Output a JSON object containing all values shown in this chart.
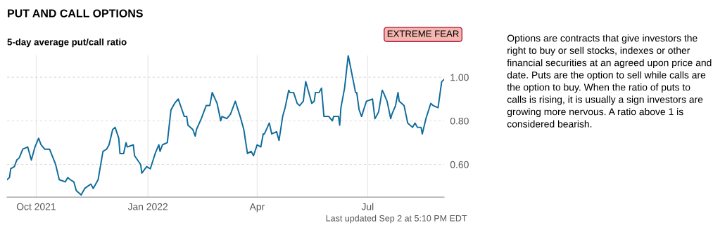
{
  "chart_data": {
    "type": "line",
    "title": "PUT AND CALL OPTIONS",
    "subtitle": "5-day average put/call ratio",
    "annotations": [
      "EXTREME FEAR",
      "Last updated Sep 2 at 5:10 PM EDT",
      "Options are contracts that give investors the right to buy or sell stocks, indexes or other financial securities at an agreed upon price and date. Puts are the option to sell while calls are the option to buy. When the ratio of puts to calls is rising, it is usually a sign investors are growing more nervous. A ratio above 1 is considered bearish."
    ],
    "x": [
      "2021-09-07",
      "2021-09-09",
      "2021-09-10",
      "2021-09-13",
      "2021-09-15",
      "2021-09-17",
      "2021-09-20",
      "2021-09-24",
      "2021-09-27",
      "2021-09-30",
      "2021-10-03",
      "2021-10-05",
      "2021-10-08",
      "2021-10-12",
      "2021-10-17",
      "2021-10-20",
      "2021-10-25",
      "2021-10-27",
      "2021-10-29",
      "2021-11-01",
      "2021-11-03",
      "2021-11-07",
      "2021-11-10",
      "2021-11-15",
      "2021-11-17",
      "2021-11-19",
      "2021-11-21",
      "2021-11-25",
      "2021-11-28",
      "2021-11-30",
      "2021-12-03",
      "2021-12-05",
      "2021-12-08",
      "2021-12-09",
      "2021-12-12",
      "2021-12-14",
      "2021-12-15",
      "2021-12-20",
      "2021-12-21",
      "2021-12-26",
      "2021-12-27",
      "2021-12-31",
      "2022-01-03",
      "2022-01-07",
      "2022-01-10",
      "2022-01-11",
      "2022-01-13",
      "2022-01-17",
      "2022-01-20",
      "2022-01-23",
      "2022-01-26",
      "2022-01-31",
      "2022-02-02",
      "2022-02-03",
      "2022-02-07",
      "2022-02-09",
      "2022-02-10",
      "2022-02-14",
      "2022-02-18",
      "2022-02-21",
      "2022-02-23",
      "2022-02-27",
      "2022-03-02",
      "2022-03-03",
      "2022-03-07",
      "2022-03-10",
      "2022-03-14",
      "2022-03-18",
      "2022-03-21",
      "2022-03-24",
      "2022-03-27",
      "2022-03-29",
      "2022-04-01",
      "2022-04-04",
      "2022-04-06",
      "2022-04-07",
      "2022-04-11",
      "2022-04-13",
      "2022-04-17",
      "2022-04-19",
      "2022-04-22",
      "2022-04-24",
      "2022-04-27",
      "2022-04-28",
      "2022-05-01",
      "2022-05-04",
      "2022-05-06",
      "2022-05-09",
      "2022-05-11",
      "2022-05-13",
      "2022-05-16",
      "2022-05-18",
      "2022-05-19",
      "2022-05-22",
      "2022-05-24",
      "2022-05-26",
      "2022-05-30",
      "2022-06-02",
      "2022-06-03",
      "2022-06-07",
      "2022-06-08",
      "2022-06-09",
      "2022-06-12",
      "2022-06-15",
      "2022-06-20",
      "2022-06-21",
      "2022-06-22",
      "2022-06-24",
      "2022-06-26",
      "2022-06-30",
      "2022-07-05",
      "2022-07-07",
      "2022-07-10",
      "2022-07-13",
      "2022-07-14",
      "2022-07-17",
      "2022-07-20",
      "2022-07-21",
      "2022-07-24",
      "2022-07-26",
      "2022-07-27",
      "2022-07-31",
      "2022-08-03",
      "2022-08-07",
      "2022-08-09",
      "2022-08-11",
      "2022-08-14",
      "2022-08-15",
      "2022-08-18",
      "2022-08-22",
      "2022-08-24",
      "2022-08-28",
      "2022-08-31",
      "2022-09-02"
    ],
    "series": [
      {
        "color": "#0f6b9b",
        "values": [
          0.53,
          0.54,
          0.58,
          0.59,
          0.62,
          0.63,
          0.67,
          0.68,
          0.62,
          0.68,
          0.72,
          0.69,
          0.67,
          0.67,
          0.6,
          0.53,
          0.52,
          0.54,
          0.53,
          0.52,
          0.48,
          0.46,
          0.49,
          0.51,
          0.49,
          0.51,
          0.53,
          0.66,
          0.67,
          0.69,
          0.76,
          0.77,
          0.72,
          0.65,
          0.65,
          0.7,
          0.68,
          0.69,
          0.64,
          0.6,
          0.56,
          0.59,
          0.58,
          0.65,
          0.69,
          0.66,
          0.69,
          0.7,
          0.85,
          0.88,
          0.9,
          0.82,
          0.82,
          0.78,
          0.76,
          0.73,
          0.76,
          0.81,
          0.87,
          0.87,
          0.93,
          0.88,
          0.8,
          0.82,
          0.81,
          0.83,
          0.89,
          0.82,
          0.76,
          0.65,
          0.66,
          0.64,
          0.69,
          0.68,
          0.74,
          0.74,
          0.79,
          0.74,
          0.75,
          0.71,
          0.82,
          0.86,
          0.94,
          0.93,
          0.93,
          0.88,
          0.87,
          0.89,
          0.98,
          0.94,
          0.88,
          0.89,
          0.93,
          0.93,
          0.95,
          0.82,
          0.82,
          0.8,
          0.82,
          0.82,
          0.78,
          0.86,
          0.95,
          1.1,
          0.96,
          0.93,
          0.93,
          0.85,
          0.82,
          0.89,
          0.9,
          0.81,
          0.84,
          0.94,
          0.93,
          0.89,
          0.81,
          0.83,
          0.87,
          0.93,
          0.89,
          0.87,
          0.79,
          0.77,
          0.79,
          0.77,
          0.77,
          0.74,
          0.81,
          0.88,
          0.87,
          0.86,
          0.98,
          0.99
        ]
      }
    ],
    "xlim": [
      "2021-09-07",
      "2022-09-02"
    ],
    "ylim": [
      0.45,
      1.1
    ],
    "xticks": [
      {
        "value": "2021-10-01",
        "label": "Oct 2021"
      },
      {
        "value": "2022-01-01",
        "label": "Jan 2022"
      },
      {
        "value": "2022-04-01",
        "label": "Apr"
      },
      {
        "value": "2022-07-01",
        "label": "Jul"
      }
    ],
    "yticks": [
      {
        "value": 0.6,
        "label": "0.60"
      },
      {
        "value": 0.8,
        "label": "0.80"
      },
      {
        "value": 1.0,
        "label": "1.00"
      }
    ],
    "grid": true,
    "legend": false
  }
}
